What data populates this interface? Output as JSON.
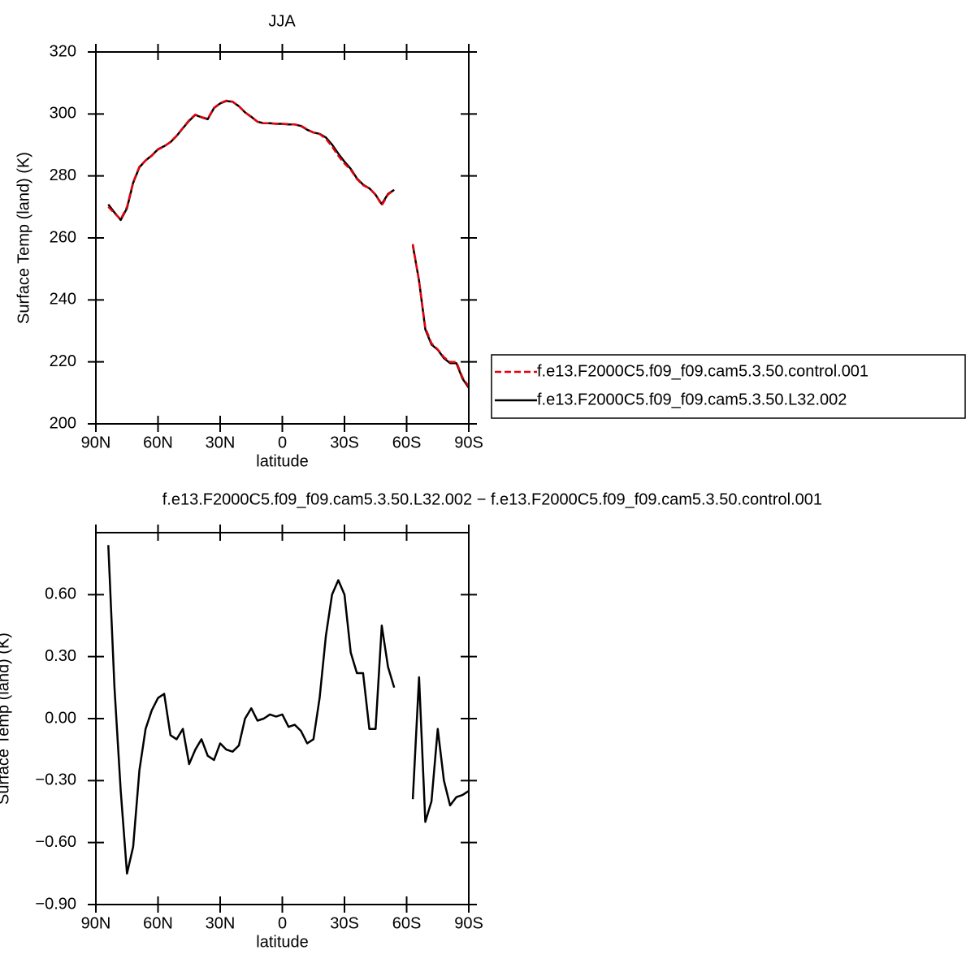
{
  "chart_data": [
    {
      "type": "line",
      "title": "JJA",
      "ylabel": "Surface Temp (land) (K)",
      "xlabel": "latitude",
      "x": [
        84,
        81,
        78,
        75,
        72,
        69,
        66,
        63,
        60,
        57,
        54,
        51,
        48,
        45,
        42,
        39,
        36,
        33,
        30,
        27,
        24,
        21,
        18,
        15,
        12,
        9,
        6,
        3,
        0,
        -3,
        -6,
        -9,
        -12,
        -15,
        -18,
        -21,
        -24,
        -27,
        -30,
        -33,
        -36,
        -39,
        -42,
        -45,
        -48,
        -51,
        -54,
        -57,
        -60,
        -63,
        -66,
        -69,
        -72,
        -75,
        -78,
        -81,
        -84,
        -87,
        -90
      ],
      "series": [
        {
          "name": "f.e13.F2000C5.f09_f09.cam5.3.50.control.001",
          "color": "#e8000b",
          "linestyle": "dashed",
          "values": [
            270,
            268,
            266,
            270,
            278,
            283,
            285,
            286.5,
            288.5,
            289.5,
            291,
            293,
            295.5,
            298,
            299.8,
            299,
            298.5,
            302,
            303.5,
            304.3,
            304,
            302.5,
            300.5,
            299,
            297.5,
            297,
            297,
            296.8,
            296.8,
            296.7,
            296.6,
            296.2,
            295,
            294,
            293.5,
            292,
            289.5,
            286.5,
            284,
            282,
            279,
            277,
            276,
            274,
            270.5,
            274,
            275.5,
            null,
            null,
            258,
            246,
            231,
            226,
            224,
            221.5,
            220,
            220,
            215,
            212
          ]
        },
        {
          "name": "f.e13.F2000C5.f09_f09.cam5.3.50.L32.002",
          "color": "#000000",
          "linestyle": "solid",
          "values": [
            270.8,
            268.2,
            265.8,
            269.6,
            277.8,
            282.8,
            285,
            286.6,
            288.6,
            289.6,
            290.9,
            292.9,
            295.4,
            297.8,
            299.7,
            298.9,
            298.3,
            301.9,
            303.4,
            304.2,
            303.9,
            302.5,
            300.5,
            299.1,
            297.5,
            297,
            297,
            296.8,
            296.8,
            296.6,
            296.6,
            296.1,
            294.9,
            294,
            293.6,
            292.4,
            290.1,
            287.2,
            284.6,
            282.3,
            279.2,
            277.2,
            276,
            273.9,
            270.9,
            274.2,
            275.5,
            null,
            null,
            257.6,
            246.2,
            230.5,
            225.6,
            223.9,
            221.2,
            219.6,
            219.6,
            214.6,
            211.6
          ]
        }
      ],
      "xlim": [
        90,
        -90
      ],
      "xticks": [
        {
          "value": 90,
          "label": "90N"
        },
        {
          "value": 60,
          "label": "60N"
        },
        {
          "value": 30,
          "label": "30N"
        },
        0,
        {
          "value": -30,
          "label": "30S"
        },
        {
          "value": -60,
          "label": "60S"
        },
        {
          "value": -90,
          "label": "90S"
        }
      ],
      "ylim": [
        200,
        320
      ],
      "yticks": [
        200,
        220,
        240,
        260,
        280,
        300,
        320
      ],
      "legend": "right"
    },
    {
      "type": "line",
      "title": "f.e13.F2000C5.f09_f09.cam5.3.50.L32.002 − f.e13.F2000C5.f09_f09.cam5.3.50.control.001",
      "ylabel": "Surface Temp (land) (K)",
      "xlabel": "latitude",
      "color": "#000000",
      "x": [
        84,
        81,
        78,
        75,
        72,
        69,
        66,
        63,
        60,
        57,
        54,
        51,
        48,
        45,
        42,
        39,
        36,
        33,
        30,
        27,
        24,
        21,
        18,
        15,
        12,
        9,
        6,
        3,
        0,
        -3,
        -6,
        -9,
        -12,
        -15,
        -18,
        -21,
        -24,
        -27,
        -30,
        -33,
        -36,
        -39,
        -42,
        -45,
        -48,
        -51,
        -54,
        -57,
        -60,
        -63,
        -66,
        -69,
        -72,
        -75,
        -78,
        -81,
        -84,
        -87,
        -90
      ],
      "values": [
        0.84,
        0.15,
        -0.35,
        -0.75,
        -0.62,
        -0.25,
        -0.05,
        0.04,
        0.1,
        0.12,
        -0.08,
        -0.1,
        -0.05,
        -0.22,
        -0.15,
        -0.1,
        -0.18,
        -0.2,
        -0.12,
        -0.15,
        -0.16,
        -0.13,
        0,
        0.05,
        -0.01,
        0,
        0.02,
        0.01,
        0.02,
        -0.04,
        -0.03,
        -0.06,
        -0.12,
        -0.1,
        0.1,
        0.4,
        0.6,
        0.67,
        0.6,
        0.32,
        0.22,
        0.22,
        -0.05,
        -0.05,
        0.45,
        0.25,
        0.15,
        null,
        null,
        -0.39,
        0.2,
        -0.5,
        -0.4,
        -0.05,
        -0.3,
        -0.42,
        -0.38,
        -0.37,
        -0.35
      ],
      "xlim": [
        90,
        -90
      ],
      "xticks": [
        {
          "value": 90,
          "label": "90N"
        },
        {
          "value": 60,
          "label": "60N"
        },
        {
          "value": 30,
          "label": "30N"
        },
        0,
        {
          "value": -30,
          "label": "30S"
        },
        {
          "value": -60,
          "label": "60S"
        },
        {
          "value": -90,
          "label": "90S"
        }
      ],
      "ylim": [
        -0.9,
        0.9
      ],
      "yticks": [
        {
          "value": -0.9,
          "label": "−0.90"
        },
        {
          "value": -0.6,
          "label": "−0.60"
        },
        {
          "value": -0.3,
          "label": "−0.30"
        },
        {
          "value": 0,
          "label": "0.00"
        },
        {
          "value": 0.3,
          "label": "0.30"
        },
        {
          "value": 0.6,
          "label": "0.60"
        }
      ]
    }
  ]
}
